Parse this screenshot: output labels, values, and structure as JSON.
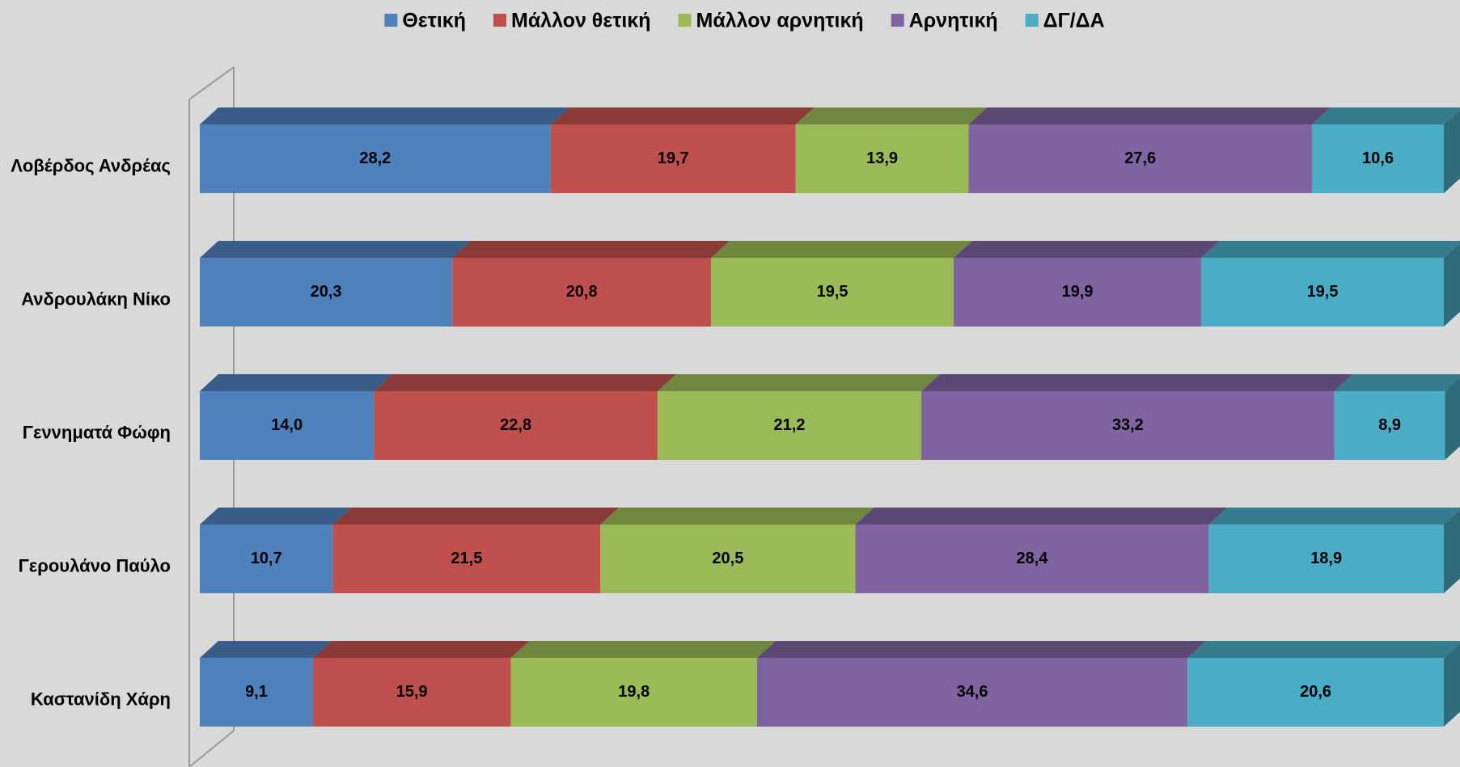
{
  "chart_data": {
    "type": "stacked_barh",
    "categories": [
      "Λοβέρδος Ανδρέας",
      "Ανδρουλάκη Νίκο",
      "Γεννηματά Φώφη",
      "Γερουλάνο Παύλο",
      "Καστανίδη Χάρη"
    ],
    "series": [
      {
        "name": "Θετική",
        "color": "#4f81bd",
        "values": [
          28.2,
          20.3,
          14.0,
          10.7,
          9.1
        ],
        "value_labels": [
          "28,2",
          "20,3",
          "14,0",
          "10,7",
          "9,1"
        ]
      },
      {
        "name": "Μάλλον θετική",
        "color": "#c0504d",
        "values": [
          19.7,
          20.8,
          22.8,
          21.5,
          15.9
        ],
        "value_labels": [
          "19,7",
          "20,8",
          "22,8",
          "21,5",
          "15,9"
        ]
      },
      {
        "name": "Μάλλον αρνητική",
        "color": "#9bbb59",
        "values": [
          13.9,
          19.5,
          21.2,
          20.5,
          19.8
        ],
        "value_labels": [
          "13,9",
          "19,5",
          "21,2",
          "20,5",
          "19,8"
        ]
      },
      {
        "name": "Αρνητική",
        "color": "#8064a2",
        "values": [
          27.6,
          19.9,
          33.2,
          28.4,
          34.6
        ],
        "value_labels": [
          "27,6",
          "19,9",
          "33,2",
          "28,4",
          "34,6"
        ]
      },
      {
        "name": "ΔΓ/ΔΑ",
        "color": "#4bacc6",
        "values": [
          10.6,
          19.5,
          8.9,
          18.9,
          20.6
        ],
        "value_labels": [
          "10,6",
          "19,5",
          "8,9",
          "18,9",
          "20,6"
        ]
      }
    ],
    "xlim": [
      0,
      100
    ],
    "legend": "top"
  }
}
